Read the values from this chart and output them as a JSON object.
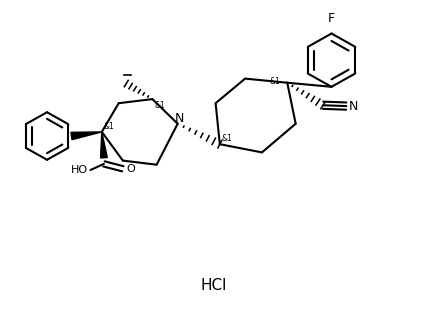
{
  "background_color": "#ffffff",
  "line_color": "#000000",
  "line_width": 1.5,
  "hcl_text": "HCl",
  "hcl_fontsize": 11,
  "fig_width": 4.27,
  "fig_height": 3.13,
  "dpi": 100,
  "xlim": [
    0,
    10
  ],
  "ylim": [
    0,
    7.5
  ]
}
